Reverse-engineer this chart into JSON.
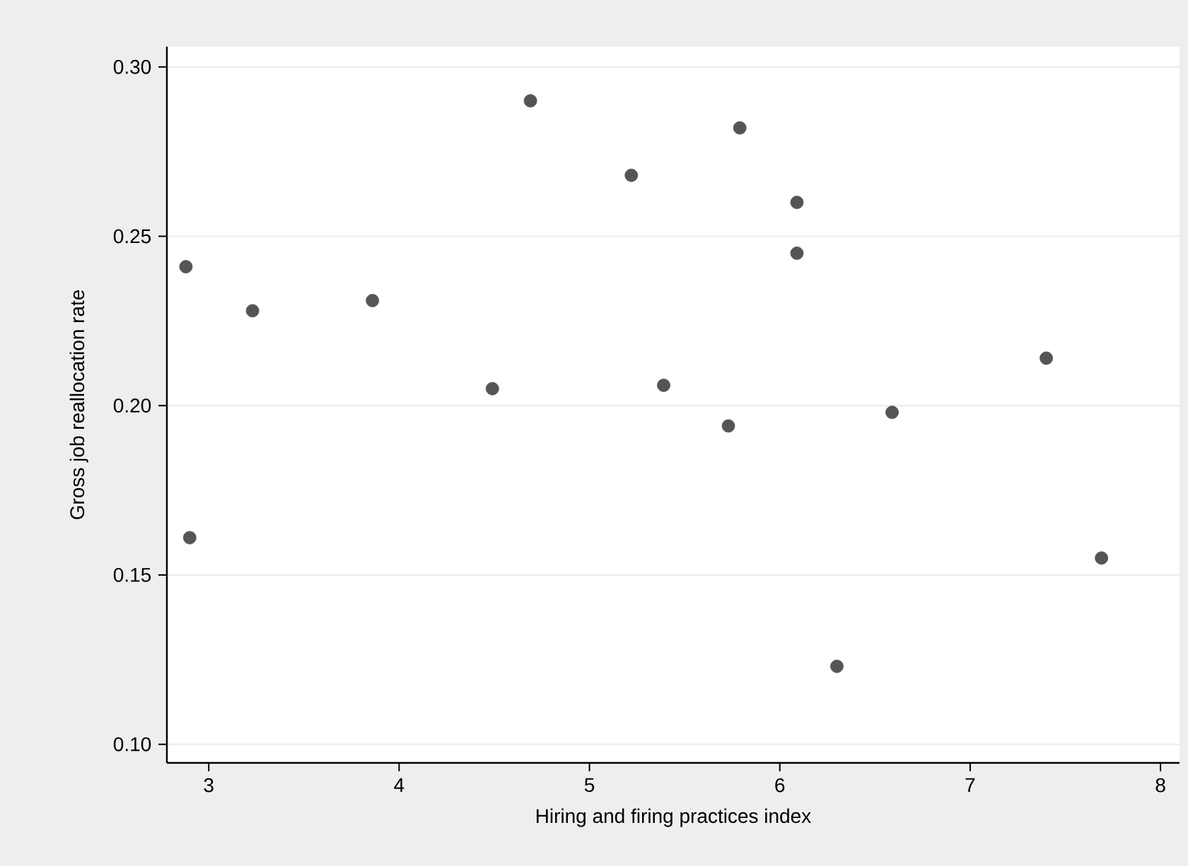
{
  "chart_data": {
    "type": "scatter",
    "xlabel": "Hiring and firing practices index",
    "ylabel": "Gross job reallocation rate",
    "x": [
      2.88,
      2.9,
      3.23,
      3.86,
      4.49,
      4.69,
      5.22,
      5.79,
      6.09,
      6.09,
      5.39,
      5.73,
      6.59,
      7.4,
      7.69,
      6.3
    ],
    "series": [
      {
        "color": "#555555",
        "values": [
          0.241,
          0.161,
          0.228,
          0.231,
          0.205,
          0.29,
          0.268,
          0.282,
          0.26,
          0.245,
          0.206,
          0.194,
          0.198,
          0.214,
          0.155,
          0.123
        ]
      }
    ],
    "xlim": [
      2.78,
      8.1
    ],
    "ylim": [
      0.0945,
      0.306
    ],
    "xticks": [
      3,
      4,
      5,
      6,
      7,
      8
    ],
    "yticks": [
      {
        "value": 0.1,
        "label": "0.10"
      },
      {
        "value": 0.15,
        "label": "0.15"
      },
      {
        "value": 0.2,
        "label": "0.20"
      },
      {
        "value": 0.25,
        "label": "0.25"
      },
      {
        "value": 0.3,
        "label": "0.30"
      }
    ],
    "grid": "y",
    "marker": "circle"
  }
}
